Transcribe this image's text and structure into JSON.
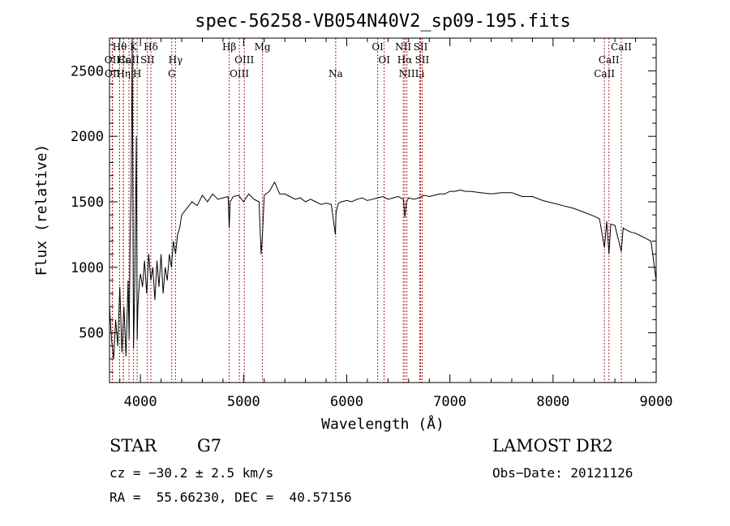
{
  "chart_data": {
    "type": "line",
    "title": "spec-56258-VB054N40V2_sp09-195.fits",
    "xlabel": "Wavelength (Å)",
    "ylabel": "Flux (relative)",
    "xlim": [
      3700,
      9000
    ],
    "ylim": [
      120,
      2750
    ],
    "xticks": [
      4000,
      5000,
      6000,
      7000,
      8000,
      9000
    ],
    "yticks": [
      500,
      1000,
      1500,
      2000,
      2500
    ],
    "grid": false,
    "series": [
      {
        "x": [
          3700,
          3720,
          3740,
          3760,
          3780,
          3800,
          3820,
          3840,
          3860,
          3880,
          3890,
          3900,
          3910,
          3920,
          3933,
          3945,
          3960,
          3968,
          3975,
          3990,
          4000,
          4020,
          4040,
          4060,
          4080,
          4101,
          4120,
          4140,
          4160,
          4180,
          4200,
          4220,
          4240,
          4260,
          4280,
          4300,
          4320,
          4340,
          4360,
          4380,
          4400,
          4450,
          4500,
          4550,
          4600,
          4650,
          4700,
          4750,
          4800,
          4850,
          4861,
          4870,
          4900,
          4950,
          5000,
          5050,
          5100,
          5150,
          5170,
          5183,
          5200,
          5250,
          5300,
          5350,
          5400,
          5450,
          5500,
          5550,
          5600,
          5650,
          5700,
          5750,
          5800,
          5850,
          5890,
          5896,
          5920,
          5950,
          6000,
          6050,
          6100,
          6150,
          6200,
          6250,
          6300,
          6350,
          6400,
          6450,
          6500,
          6550,
          6563,
          6580,
          6600,
          6650,
          6700,
          6750,
          6800,
          6850,
          6900,
          6950,
          7000,
          7050,
          7100,
          7150,
          7200,
          7300,
          7400,
          7500,
          7600,
          7700,
          7800,
          7900,
          8000,
          8100,
          8200,
          8300,
          8400,
          8450,
          8498,
          8520,
          8542,
          8560,
          8600,
          8662,
          8680,
          8700,
          8750,
          8800,
          8850,
          8900,
          8950,
          9000
        ],
        "values": [
          700,
          450,
          300,
          600,
          400,
          850,
          350,
          700,
          320,
          900,
          450,
          1200,
          1600,
          2750,
          380,
          900,
          2000,
          450,
          700,
          900,
          950,
          850,
          1050,
          800,
          1100,
          900,
          1000,
          750,
          1050,
          850,
          1100,
          800,
          1000,
          900,
          1100,
          1000,
          1200,
          1100,
          1250,
          1300,
          1400,
          1450,
          1500,
          1470,
          1550,
          1500,
          1560,
          1520,
          1530,
          1540,
          1300,
          1500,
          1540,
          1550,
          1500,
          1560,
          1520,
          1500,
          1100,
          1250,
          1550,
          1580,
          1650,
          1560,
          1560,
          1540,
          1520,
          1530,
          1500,
          1520,
          1500,
          1480,
          1490,
          1480,
          1250,
          1420,
          1490,
          1500,
          1510,
          1500,
          1520,
          1530,
          1510,
          1520,
          1530,
          1540,
          1520,
          1530,
          1540,
          1520,
          1380,
          1500,
          1530,
          1520,
          1530,
          1550,
          1540,
          1550,
          1560,
          1560,
          1580,
          1580,
          1590,
          1580,
          1580,
          1570,
          1560,
          1570,
          1570,
          1540,
          1540,
          1510,
          1490,
          1470,
          1450,
          1420,
          1390,
          1370,
          1150,
          1350,
          1100,
          1330,
          1320,
          1120,
          1300,
          1290,
          1270,
          1260,
          1240,
          1220,
          1200,
          900
        ]
      }
    ],
    "lines": [
      {
        "name": "Hθ",
        "x": 3798,
        "row": 0
      },
      {
        "name": "K",
        "x": 3933,
        "row": 0
      },
      {
        "name": "Hδ",
        "x": 4101,
        "row": 0
      },
      {
        "name": "Hβ",
        "x": 4861,
        "row": 0
      },
      {
        "name": "Mg",
        "x": 5183,
        "row": 0
      },
      {
        "name": "OI",
        "x": 6300,
        "row": 0
      },
      {
        "name": "NII",
        "x": 6548,
        "row": 0
      },
      {
        "name": "SII",
        "x": 6716,
        "row": 0
      },
      {
        "name": "CaII",
        "x": 8662,
        "row": 0
      },
      {
        "name": "OII",
        "x": 3727,
        "row": 1
      },
      {
        "name": "Hε",
        "x": 3835,
        "row": 1
      },
      {
        "name": "CaII",
        "x": 3889,
        "row": 1
      },
      {
        "name": "SII",
        "x": 4068,
        "row": 1
      },
      {
        "name": "Hγ",
        "x": 4340,
        "row": 1
      },
      {
        "name": "OIII",
        "x": 5007,
        "row": 1
      },
      {
        "name": "OI",
        "x": 6363,
        "row": 1
      },
      {
        "name": "Hα",
        "x": 6563,
        "row": 1
      },
      {
        "name": "SII",
        "x": 6731,
        "row": 1
      },
      {
        "name": "CaII",
        "x": 8542,
        "row": 1
      },
      {
        "name": "OII",
        "x": 3729,
        "row": 2
      },
      {
        "name": "Hη",
        "x": 3835,
        "row": 2
      },
      {
        "name": "H",
        "x": 3968,
        "row": 2
      },
      {
        "name": "G",
        "x": 4304,
        "row": 2
      },
      {
        "name": "OIII",
        "x": 4959,
        "row": 2
      },
      {
        "name": "Na",
        "x": 5893,
        "row": 2
      },
      {
        "name": "NII",
        "x": 6583,
        "row": 2
      },
      {
        "name": "Li",
        "x": 6708,
        "row": 2
      },
      {
        "name": "CaII",
        "x": 8498,
        "row": 2
      }
    ]
  },
  "info": {
    "class": "STAR",
    "subclass": "G7",
    "survey": "LAMOST DR2",
    "cz": "cz = −30.2 ± 2.5 km/s",
    "obs_date": "Obs−Date: 20121126",
    "coords": "RA =  55.66230, DEC =  40.57156"
  }
}
